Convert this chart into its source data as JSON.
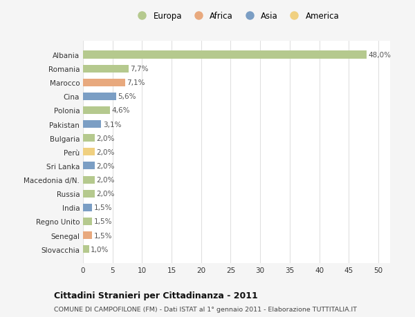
{
  "categories": [
    "Albania",
    "Romania",
    "Marocco",
    "Cina",
    "Polonia",
    "Pakistan",
    "Bulgaria",
    "Perù",
    "Sri Lanka",
    "Macedonia d/N.",
    "Russia",
    "India",
    "Regno Unito",
    "Senegal",
    "Slovacchia"
  ],
  "values": [
    48.0,
    7.7,
    7.1,
    5.6,
    4.6,
    3.1,
    2.0,
    2.0,
    2.0,
    2.0,
    2.0,
    1.5,
    1.5,
    1.5,
    1.0
  ],
  "continents": [
    "Europa",
    "Europa",
    "Africa",
    "Asia",
    "Europa",
    "Asia",
    "Europa",
    "America",
    "Asia",
    "Europa",
    "Europa",
    "Asia",
    "Europa",
    "Africa",
    "Europa"
  ],
  "continent_colors": {
    "Europa": "#b5c98e",
    "Africa": "#e8a97e",
    "Asia": "#7b9ec4",
    "America": "#f0d080"
  },
  "legend_entries": [
    "Europa",
    "Africa",
    "Asia",
    "America"
  ],
  "title": "Cittadini Stranieri per Cittadinanza - 2011",
  "subtitle": "COMUNE DI CAMPOFILONE (FM) - Dati ISTAT al 1° gennaio 2011 - Elaborazione TUTTITALIA.IT",
  "xlim": [
    0,
    52
  ],
  "xticks": [
    0,
    5,
    10,
    15,
    20,
    25,
    30,
    35,
    40,
    45,
    50
  ],
  "bg_color": "#f5f5f5",
  "plot_bg_color": "#ffffff",
  "grid_color": "#e0e0e0"
}
